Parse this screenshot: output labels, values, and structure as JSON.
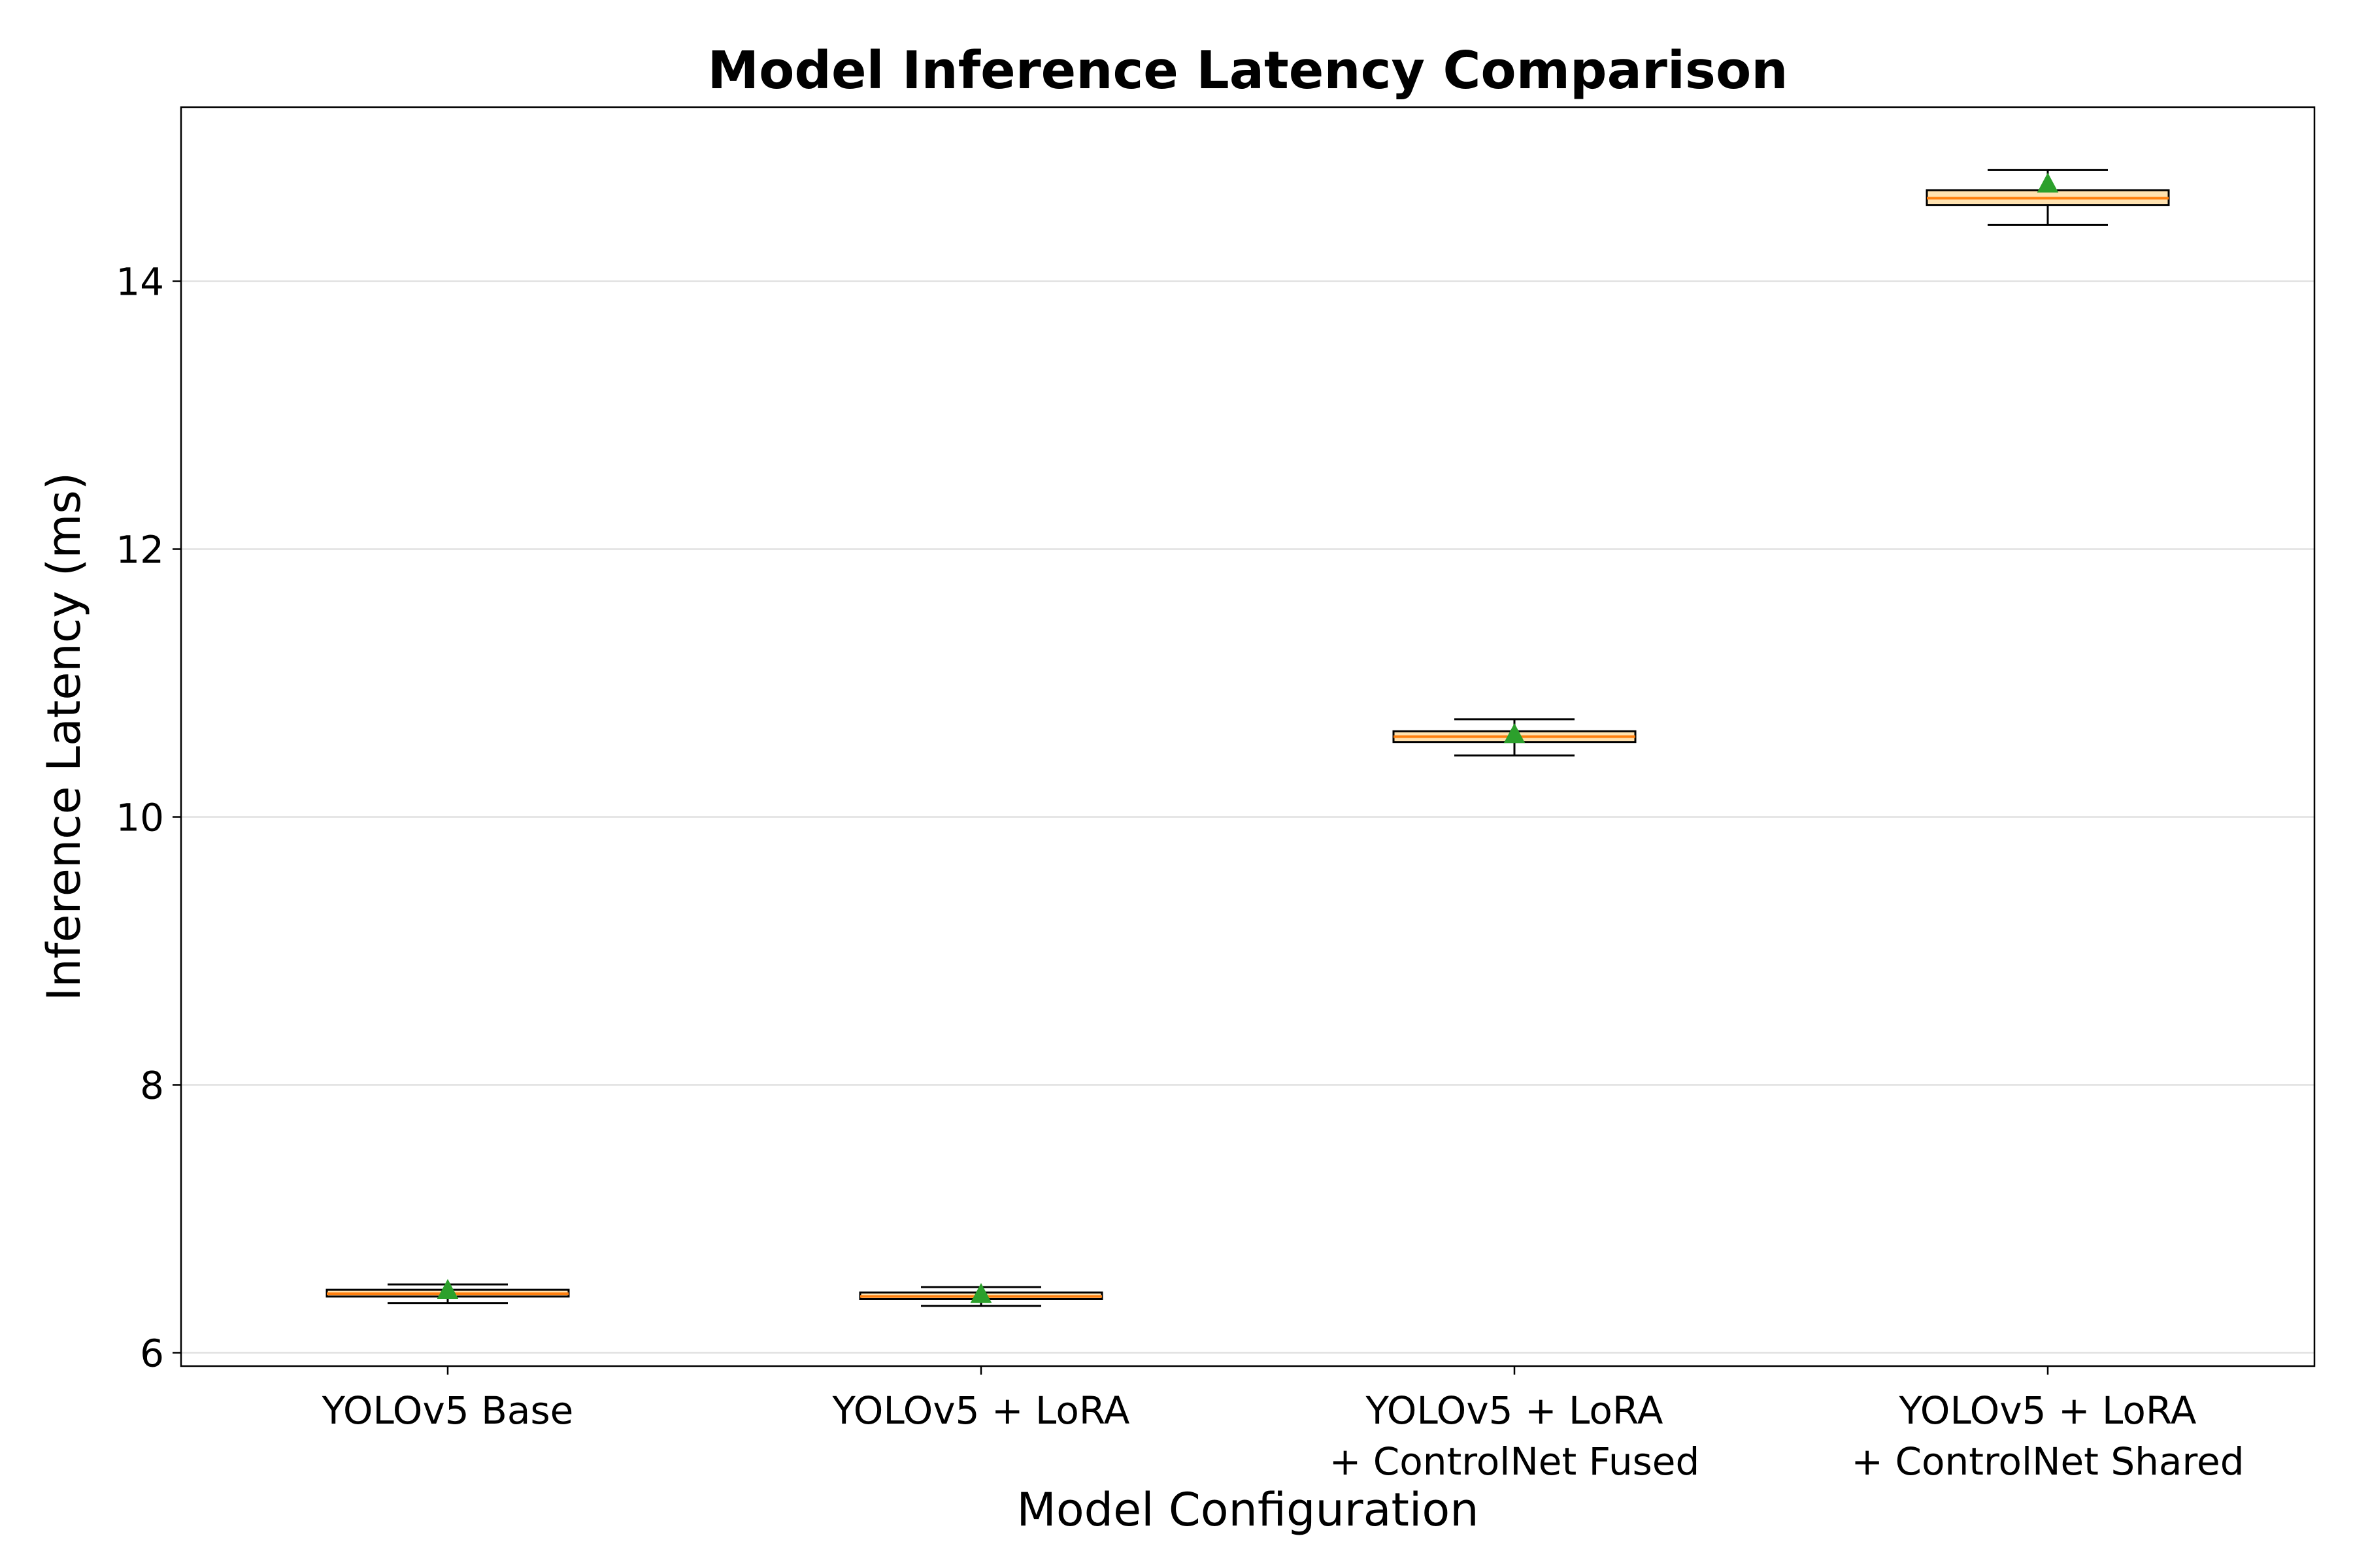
{
  "chart_data": {
    "type": "box",
    "title": "Model Inference Latency Comparison",
    "xlabel": "Model Configuration",
    "ylabel": "Inference Latency (ms)",
    "ylim": [
      5.9,
      15.3
    ],
    "yticks": [
      6,
      8,
      10,
      12,
      14
    ],
    "grid": "horizontal",
    "legend": "none",
    "categories": [
      [
        "YOLOv5 Base"
      ],
      [
        "YOLOv5 + LoRA"
      ],
      [
        "YOLOv5 + LoRA",
        "+ ControlNet Fused"
      ],
      [
        "YOLOv5 + LoRA",
        "+ ControlNet Shared"
      ]
    ],
    "boxes": [
      {
        "whisker_low": 6.37,
        "q1": 6.42,
        "median": 6.44,
        "q3": 6.47,
        "whisker_high": 6.51,
        "mean": 6.46
      },
      {
        "whisker_low": 6.35,
        "q1": 6.4,
        "median": 6.42,
        "q3": 6.45,
        "whisker_high": 6.49,
        "mean": 6.43
      },
      {
        "whisker_low": 10.46,
        "q1": 10.56,
        "median": 10.6,
        "q3": 10.64,
        "whisker_high": 10.73,
        "mean": 10.61
      },
      {
        "whisker_low": 14.42,
        "q1": 14.57,
        "median": 14.62,
        "q3": 14.68,
        "whisker_high": 14.83,
        "mean": 14.72
      }
    ],
    "colors": {
      "box_fill": "#ffe2b0",
      "box_edge": "#000000",
      "median": "#ff7f0e",
      "mean_marker": "#2ca02c",
      "grid": "#e0e0e0"
    }
  }
}
